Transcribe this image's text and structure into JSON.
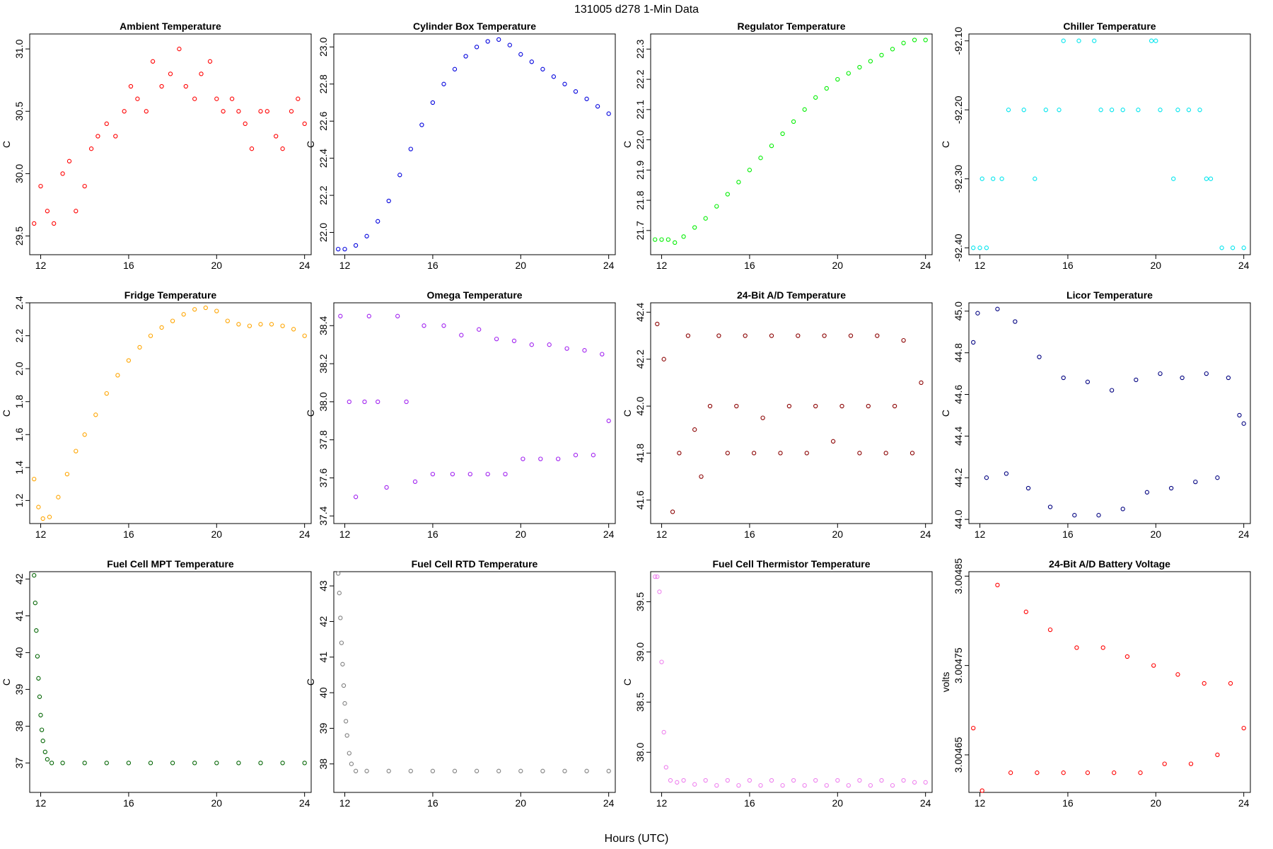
{
  "figure": {
    "title": "131005    d278    1-Min Data",
    "xlabel": "Hours (UTC)"
  },
  "chart_data": [
    {
      "type": "scatter",
      "title": "Ambient Temperature",
      "ylabel": "C",
      "color": "#ff0000",
      "xlim": [
        11.5,
        24.3
      ],
      "ylim": [
        29.35,
        31.12
      ],
      "xticks": [
        12,
        16,
        20,
        24
      ],
      "yticks": [
        29.5,
        30.0,
        30.5,
        31.0
      ],
      "ytick_labels": [
        "29.5",
        "30.0",
        "30.5",
        "31.0"
      ],
      "x": [
        11.7,
        12.0,
        12.3,
        12.6,
        13.0,
        13.3,
        13.6,
        14.0,
        14.3,
        14.6,
        15.0,
        15.4,
        15.8,
        16.1,
        16.4,
        16.8,
        17.1,
        17.5,
        17.9,
        18.3,
        18.6,
        19.0,
        19.3,
        19.7,
        20.0,
        20.3,
        20.7,
        21.0,
        21.3,
        21.6,
        22.0,
        22.3,
        22.7,
        23.0,
        23.4,
        23.7,
        24.0
      ],
      "y": [
        29.6,
        29.9,
        29.7,
        29.6,
        30.0,
        30.1,
        29.7,
        29.9,
        30.2,
        30.3,
        30.4,
        30.3,
        30.5,
        30.7,
        30.6,
        30.5,
        30.9,
        30.7,
        30.8,
        31.0,
        30.7,
        30.6,
        30.8,
        30.9,
        30.6,
        30.5,
        30.6,
        30.5,
        30.4,
        30.2,
        30.5,
        30.5,
        30.3,
        30.2,
        30.5,
        30.6,
        30.4
      ]
    },
    {
      "type": "scatter",
      "title": "Cylinder Box Temperature",
      "ylabel": "C",
      "color": "#0000dd",
      "xlim": [
        11.5,
        24.3
      ],
      "ylim": [
        21.88,
        23.07
      ],
      "xticks": [
        12,
        16,
        20,
        24
      ],
      "yticks": [
        22.0,
        22.2,
        22.4,
        22.6,
        22.8,
        23.0
      ],
      "ytick_labels": [
        "22.0",
        "22.2",
        "22.4",
        "22.6",
        "22.8",
        "23.0"
      ],
      "x": [
        11.7,
        12.0,
        12.5,
        13.0,
        13.5,
        14.0,
        14.5,
        15.0,
        15.5,
        16.0,
        16.5,
        17.0,
        17.5,
        18.0,
        18.5,
        19.0,
        19.5,
        20.0,
        20.5,
        21.0,
        21.5,
        22.0,
        22.5,
        23.0,
        23.5,
        24.0
      ],
      "y": [
        21.91,
        21.91,
        21.93,
        21.98,
        22.06,
        22.17,
        22.31,
        22.45,
        22.58,
        22.7,
        22.8,
        22.88,
        22.95,
        23.0,
        23.03,
        23.04,
        23.01,
        22.96,
        22.92,
        22.88,
        22.84,
        22.8,
        22.76,
        22.72,
        22.68,
        22.64
      ]
    },
    {
      "type": "scatter",
      "title": "Regulator Temperature",
      "ylabel": "C",
      "color": "#00ee00",
      "xlim": [
        11.5,
        24.3
      ],
      "ylim": [
        21.62,
        22.35
      ],
      "xticks": [
        12,
        16,
        20,
        24
      ],
      "yticks": [
        21.7,
        21.8,
        21.9,
        22.0,
        22.1,
        22.2,
        22.3
      ],
      "ytick_labels": [
        "21.7",
        "21.8",
        "21.9",
        "22.0",
        "22.1",
        "22.2",
        "22.3"
      ],
      "x": [
        11.7,
        12.0,
        12.3,
        12.6,
        13.0,
        13.5,
        14.0,
        14.5,
        15.0,
        15.5,
        16.0,
        16.5,
        17.0,
        17.5,
        18.0,
        18.5,
        19.0,
        19.5,
        20.0,
        20.5,
        21.0,
        21.5,
        22.0,
        22.5,
        23.0,
        23.5,
        24.0
      ],
      "y": [
        21.67,
        21.67,
        21.67,
        21.66,
        21.68,
        21.71,
        21.74,
        21.78,
        21.82,
        21.86,
        21.9,
        21.94,
        21.98,
        22.02,
        22.06,
        22.1,
        22.14,
        22.17,
        22.2,
        22.22,
        22.24,
        22.26,
        22.28,
        22.3,
        22.32,
        22.33,
        22.33
      ]
    },
    {
      "type": "scatter",
      "title": "Chiller Temperature",
      "ylabel": "C",
      "color": "#00e5ee",
      "xlim": [
        11.5,
        24.3
      ],
      "ylim": [
        -92.41,
        -92.09
      ],
      "xticks": [
        12,
        16,
        20,
        24
      ],
      "yticks": [
        -92.4,
        -92.3,
        -92.2,
        -92.1
      ],
      "ytick_labels": [
        "-92.40",
        "-92.30",
        "-92.20",
        "-92.10"
      ],
      "x": [
        11.7,
        12.0,
        12.3,
        12.1,
        12.6,
        13.0,
        13.3,
        14.0,
        14.5,
        15.0,
        15.6,
        15.8,
        16.5,
        17.2,
        17.5,
        18.0,
        18.5,
        19.2,
        19.8,
        20.0,
        20.2,
        20.8,
        21.0,
        21.5,
        22.0,
        22.3,
        22.5,
        23.0,
        23.5,
        24.0
      ],
      "y": [
        -92.4,
        -92.4,
        -92.4,
        -92.3,
        -92.3,
        -92.3,
        -92.2,
        -92.2,
        -92.3,
        -92.2,
        -92.2,
        -92.1,
        -92.1,
        -92.1,
        -92.2,
        -92.2,
        -92.2,
        -92.2,
        -92.1,
        -92.1,
        -92.2,
        -92.3,
        -92.2,
        -92.2,
        -92.2,
        -92.3,
        -92.3,
        -92.4,
        -92.4,
        -92.4
      ]
    },
    {
      "type": "scatter",
      "title": "Fridge Temperature",
      "ylabel": "C",
      "color": "#ffa500",
      "xlim": [
        11.5,
        24.3
      ],
      "ylim": [
        1.06,
        2.4
      ],
      "xticks": [
        12,
        16,
        20,
        24
      ],
      "yticks": [
        1.2,
        1.4,
        1.6,
        1.8,
        2.0,
        2.2,
        2.4
      ],
      "ytick_labels": [
        "1.2",
        "1.4",
        "1.6",
        "1.8",
        "2.0",
        "2.2",
        "2.4"
      ],
      "x": [
        11.7,
        11.9,
        12.1,
        12.4,
        12.8,
        13.2,
        13.6,
        14.0,
        14.5,
        15.0,
        15.5,
        16.0,
        16.5,
        17.0,
        17.5,
        18.0,
        18.5,
        19.0,
        19.5,
        20.0,
        20.5,
        21.0,
        21.5,
        22.0,
        22.5,
        23.0,
        23.5,
        24.0
      ],
      "y": [
        1.33,
        1.16,
        1.09,
        1.1,
        1.22,
        1.36,
        1.5,
        1.6,
        1.72,
        1.85,
        1.96,
        2.05,
        2.13,
        2.2,
        2.25,
        2.29,
        2.33,
        2.36,
        2.37,
        2.35,
        2.29,
        2.27,
        2.26,
        2.27,
        2.27,
        2.26,
        2.24,
        2.2
      ]
    },
    {
      "type": "scatter",
      "title": "Omega Temperature",
      "ylabel": "C",
      "color": "#a020f0",
      "xlim": [
        11.5,
        24.3
      ],
      "ylim": [
        37.36,
        38.52
      ],
      "xticks": [
        12,
        16,
        20,
        24
      ],
      "yticks": [
        37.4,
        37.6,
        37.8,
        38.0,
        38.2,
        38.4
      ],
      "ytick_labels": [
        "37.4",
        "37.6",
        "37.8",
        "38.0",
        "38.2",
        "38.4"
      ],
      "x": [
        11.8,
        12.2,
        12.5,
        12.9,
        13.1,
        13.5,
        13.9,
        14.4,
        14.8,
        15.2,
        15.6,
        16.0,
        16.5,
        16.9,
        17.3,
        17.7,
        18.1,
        18.5,
        18.9,
        19.3,
        19.7,
        20.1,
        20.5,
        20.9,
        21.3,
        21.7,
        22.1,
        22.5,
        22.9,
        23.3,
        23.7,
        24.0
      ],
      "y": [
        38.45,
        38.0,
        37.5,
        38.0,
        38.45,
        38.0,
        37.55,
        38.45,
        38.0,
        37.58,
        38.4,
        37.62,
        38.4,
        37.62,
        38.35,
        37.62,
        38.38,
        37.62,
        38.33,
        37.62,
        38.32,
        37.7,
        38.3,
        37.7,
        38.3,
        37.7,
        38.28,
        37.72,
        38.27,
        37.72,
        38.25,
        37.9
      ]
    },
    {
      "type": "scatter",
      "title": "24-Bit A/D Temperature",
      "ylabel": "C",
      "color": "#8b0000",
      "xlim": [
        11.5,
        24.3
      ],
      "ylim": [
        41.5,
        42.44
      ],
      "xticks": [
        12,
        16,
        20,
        24
      ],
      "yticks": [
        41.6,
        41.8,
        42.0,
        42.2,
        42.4
      ],
      "ytick_labels": [
        "41.6",
        "41.8",
        "42.0",
        "42.2",
        "42.4"
      ],
      "x": [
        11.8,
        12.1,
        12.5,
        12.8,
        13.2,
        13.5,
        13.8,
        14.2,
        14.6,
        15.0,
        15.4,
        15.8,
        16.2,
        16.6,
        17.0,
        17.4,
        17.8,
        18.2,
        18.6,
        19.0,
        19.4,
        19.8,
        20.2,
        20.6,
        21.0,
        21.4,
        21.8,
        22.2,
        22.6,
        23.0,
        23.4,
        23.8
      ],
      "y": [
        42.35,
        42.2,
        41.55,
        41.8,
        42.3,
        41.9,
        41.7,
        42.0,
        42.3,
        41.8,
        42.0,
        42.3,
        41.8,
        41.95,
        42.3,
        41.8,
        42.0,
        42.3,
        41.8,
        42.0,
        42.3,
        41.85,
        42.0,
        42.3,
        41.8,
        42.0,
        42.3,
        41.8,
        42.0,
        42.28,
        41.8,
        42.1
      ]
    },
    {
      "type": "scatter",
      "title": "Licor Temperature",
      "ylabel": "C",
      "color": "#000080",
      "xlim": [
        11.5,
        24.3
      ],
      "ylim": [
        43.98,
        45.04
      ],
      "xticks": [
        12,
        16,
        20,
        24
      ],
      "yticks": [
        44.0,
        44.2,
        44.4,
        44.6,
        44.8,
        45.0
      ],
      "ytick_labels": [
        "44.0",
        "44.2",
        "44.4",
        "44.6",
        "44.8",
        "45.0"
      ],
      "x": [
        11.7,
        11.9,
        12.3,
        12.8,
        13.2,
        13.6,
        14.2,
        14.7,
        15.2,
        15.8,
        16.3,
        16.9,
        17.4,
        18.0,
        18.5,
        19.1,
        19.6,
        20.2,
        20.7,
        21.2,
        21.8,
        22.3,
        22.8,
        23.3,
        23.8,
        24.0
      ],
      "y": [
        44.85,
        44.99,
        44.2,
        45.01,
        44.22,
        44.95,
        44.15,
        44.78,
        44.06,
        44.68,
        44.02,
        44.66,
        44.02,
        44.62,
        44.05,
        44.67,
        44.13,
        44.7,
        44.15,
        44.68,
        44.18,
        44.7,
        44.2,
        44.68,
        44.5,
        44.46
      ]
    },
    {
      "type": "scatter",
      "title": "Fuel Cell MPT Temperature",
      "ylabel": "C",
      "color": "#006400",
      "xlim": [
        11.5,
        24.3
      ],
      "ylim": [
        36.2,
        42.2
      ],
      "xticks": [
        12,
        16,
        20,
        24
      ],
      "yticks": [
        37,
        38,
        39,
        40,
        41,
        42
      ],
      "ytick_labels": [
        "37",
        "38",
        "39",
        "40",
        "41",
        "42"
      ],
      "x": [
        11.7,
        11.75,
        11.8,
        11.85,
        11.9,
        11.95,
        12.0,
        12.05,
        12.1,
        12.2,
        12.3,
        12.5,
        13.0,
        14.0,
        15.0,
        16.0,
        17.0,
        18.0,
        19.0,
        20.0,
        21.0,
        22.0,
        23.0,
        24.0
      ],
      "y": [
        42.1,
        41.35,
        40.6,
        39.9,
        39.3,
        38.8,
        38.3,
        37.9,
        37.6,
        37.3,
        37.1,
        37.0,
        37.0,
        37.0,
        37.0,
        37.0,
        37.0,
        37.0,
        37.0,
        37.0,
        37.0,
        37.0,
        37.0,
        37.0
      ]
    },
    {
      "type": "scatter",
      "title": "Fuel Cell RTD Temperature",
      "ylabel": "C",
      "color": "#808080",
      "xlim": [
        11.5,
        24.3
      ],
      "ylim": [
        37.2,
        43.4
      ],
      "xticks": [
        12,
        16,
        20,
        24
      ],
      "yticks": [
        38,
        39,
        40,
        41,
        42,
        43
      ],
      "ytick_labels": [
        "38",
        "39",
        "40",
        "41",
        "42",
        "43"
      ],
      "x": [
        11.7,
        11.75,
        11.8,
        11.85,
        11.9,
        11.95,
        12.0,
        12.05,
        12.1,
        12.2,
        12.3,
        12.5,
        13.0,
        14.0,
        15.0,
        16.0,
        17.0,
        18.0,
        19.0,
        20.0,
        21.0,
        22.0,
        23.0,
        24.0
      ],
      "y": [
        43.35,
        42.8,
        42.1,
        41.4,
        40.8,
        40.2,
        39.7,
        39.2,
        38.8,
        38.3,
        38.0,
        37.8,
        37.8,
        37.8,
        37.8,
        37.8,
        37.8,
        37.8,
        37.8,
        37.8,
        37.8,
        37.8,
        37.8,
        37.8
      ]
    },
    {
      "type": "scatter",
      "title": "Fuel Cell Thermistor Temperature",
      "ylabel": "C",
      "color": "#ee82ee",
      "xlim": [
        11.5,
        24.3
      ],
      "ylim": [
        37.6,
        39.8
      ],
      "xticks": [
        12,
        16,
        20,
        24
      ],
      "yticks": [
        38.0,
        38.5,
        39.0,
        39.5
      ],
      "ytick_labels": [
        "38.0",
        "38.5",
        "39.0",
        "39.5"
      ],
      "x": [
        11.7,
        11.8,
        11.9,
        12.0,
        12.1,
        12.2,
        12.4,
        12.7,
        13.0,
        13.5,
        14.0,
        14.5,
        15.0,
        15.5,
        16.0,
        16.5,
        17.0,
        17.5,
        18.0,
        18.5,
        19.0,
        19.5,
        20.0,
        20.5,
        21.0,
        21.5,
        22.0,
        22.5,
        23.0,
        23.5,
        24.0
      ],
      "y": [
        39.75,
        39.75,
        39.6,
        38.9,
        38.2,
        37.85,
        37.72,
        37.7,
        37.72,
        37.68,
        37.72,
        37.67,
        37.72,
        37.67,
        37.72,
        37.67,
        37.72,
        37.67,
        37.72,
        37.67,
        37.72,
        37.67,
        37.72,
        37.67,
        37.72,
        37.67,
        37.72,
        37.67,
        37.72,
        37.7,
        37.7
      ]
    },
    {
      "type": "scatter",
      "title": "24-Bit A/D Battery Voltage",
      "ylabel": "volts",
      "color": "#ff0000",
      "xlim": [
        11.5,
        24.3
      ],
      "ylim": [
        3.004608,
        3.004855
      ],
      "xticks": [
        12,
        16,
        20,
        24
      ],
      "yticks": [
        3.00465,
        3.00475,
        3.00485
      ],
      "ytick_labels": [
        "3.00465",
        "3.00475",
        "3.00485"
      ],
      "x": [
        11.7,
        12.1,
        12.8,
        13.4,
        14.1,
        14.6,
        15.2,
        15.8,
        16.4,
        16.9,
        17.6,
        18.1,
        18.7,
        19.3,
        19.9,
        20.4,
        21.0,
        21.6,
        22.2,
        22.8,
        23.4,
        24.0
      ],
      "y": [
        3.00468,
        3.00461,
        3.00484,
        3.00463,
        3.00481,
        3.00463,
        3.00479,
        3.00463,
        3.00477,
        3.00463,
        3.00477,
        3.00463,
        3.00476,
        3.00463,
        3.00475,
        3.00464,
        3.00474,
        3.00464,
        3.00473,
        3.00465,
        3.00473,
        3.00468
      ]
    }
  ]
}
